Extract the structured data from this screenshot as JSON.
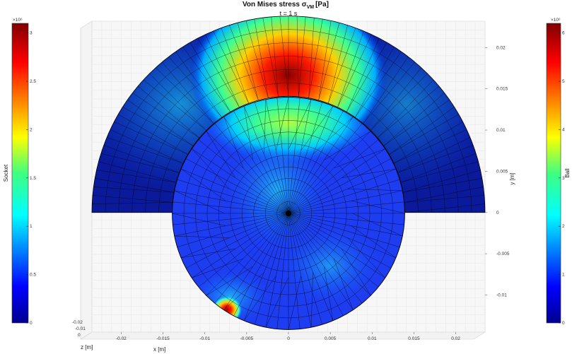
{
  "chart_data": {
    "type": "heatmap",
    "title": "Von Mises stress σ",
    "title_subscript": "VM",
    "title_unit": "[Pa]",
    "subtitle": "t = 1 s",
    "xlabel": "x [m]",
    "ylabel": "y [m]",
    "zlabel": "z [m]",
    "x_ticks": [
      "-0.02",
      "-0.015",
      "-0.01",
      "-0.005",
      "0",
      "0.005",
      "0.01",
      "0.015",
      "0.02"
    ],
    "x_tick_values": [
      -0.02,
      -0.015,
      -0.01,
      -0.005,
      0,
      0.005,
      0.01,
      0.015,
      0.02
    ],
    "y_ticks": [
      "0.02",
      "0.015",
      "0.01",
      "0.005",
      "0",
      "-0.005",
      "-0.01"
    ],
    "y_tick_values": [
      0.02,
      0.015,
      0.01,
      0.005,
      0,
      -0.005,
      -0.01
    ],
    "z_ticks": [
      "-0.02",
      "-0.01",
      "0"
    ],
    "xlim": [
      -0.0235,
      0.0235
    ],
    "ylim": [
      -0.0145,
      0.0232
    ],
    "colormap": "jet",
    "colorbars": [
      {
        "label": "Socket",
        "position": "left",
        "exponent": "×10⁶",
        "ticks": [
          "3",
          "2.5",
          "2",
          "1.5",
          "1",
          "0.5",
          "0"
        ],
        "tick_values": [
          3,
          2.5,
          2,
          1.5,
          1,
          0.5,
          0
        ],
        "range": [
          0,
          3.1
        ]
      },
      {
        "label": "Ball",
        "position": "right",
        "exponent": "×10⁶",
        "ticks": [
          "6",
          "5",
          "4",
          "3",
          "2",
          "1",
          "0"
        ],
        "tick_values": [
          6,
          5,
          4,
          3,
          2,
          1,
          0
        ],
        "range": [
          0,
          6.2
        ]
      }
    ],
    "bodies": [
      {
        "name": "Socket",
        "shape": "half-annulus",
        "inner_radius": 0.0139,
        "outer_radius": 0.0235,
        "center": [
          0,
          0
        ],
        "peak_region": "top, above ball",
        "peak_value": 3100000.0
      },
      {
        "name": "Ball",
        "shape": "circle",
        "radius": 0.0139,
        "center": [
          0,
          -0.0001
        ],
        "peak_region": "lower-left contact",
        "peak_value": 6200000.0
      }
    ]
  }
}
